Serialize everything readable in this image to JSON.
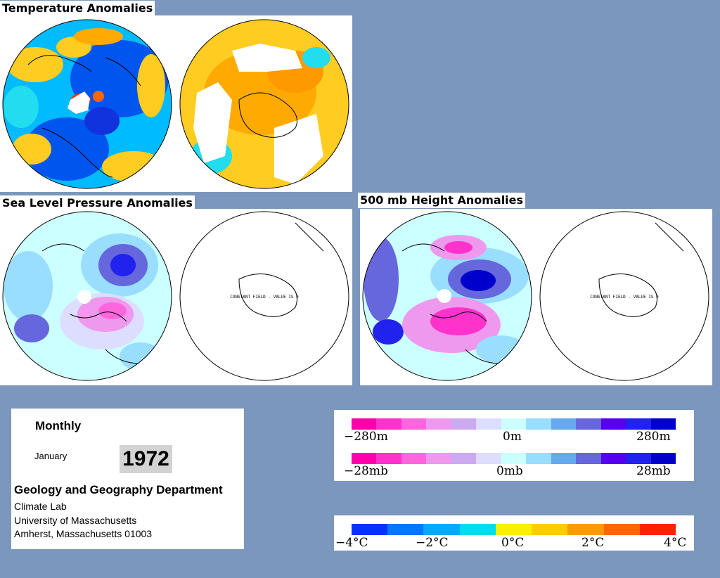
{
  "sections": {
    "temperature": "Temperature Anomalies",
    "slp": "Sea Level Pressure Anomalies",
    "height": "500 mb Height Anomalies"
  },
  "constant_field_label": "CONSTANT FIELD - VALUE IS 0",
  "info": {
    "period": "Monthly",
    "month": "January",
    "year": "1972",
    "department": "Geology and Geography Department",
    "lab": "Climate Lab",
    "university": "University of Massachusetts",
    "address": "Amherst, Massachusetts 01003"
  },
  "legends": {
    "height": {
      "left": "−280m",
      "center": "0m",
      "right": "280m"
    },
    "pressure": {
      "left": "−28mb",
      "center": "0mb",
      "right": "28mb"
    },
    "temperature": {
      "t1": "−4°C",
      "t2": "−2°C",
      "t3": "0°C",
      "t4": "2°C",
      "t5": "4°C"
    }
  },
  "colors": {
    "pressure_height_scale": [
      "#ff00aa",
      "#ff33cc",
      "#ff66dd",
      "#ee99ee",
      "#ccaaf2",
      "#ddddff",
      "#ccffff",
      "#99ddff",
      "#66aaee",
      "#6666dd",
      "#5500ee",
      "#2222ee",
      "#0000cc"
    ],
    "temperature_scale": [
      "#0033ff",
      "#0077ff",
      "#00aaff",
      "#00ddee",
      "#ffee00",
      "#ffcc00",
      "#ff9900",
      "#ff6600",
      "#ff2200"
    ],
    "background": "#7c97bd"
  }
}
